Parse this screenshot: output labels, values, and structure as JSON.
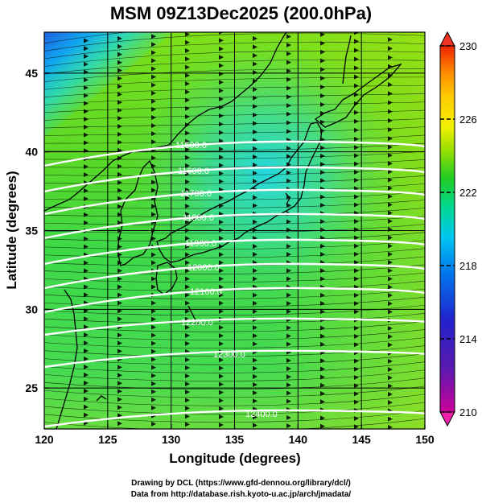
{
  "title": "MSM 09Z13Dec2025 (200.0hPa)",
  "axes": {
    "xlabel": "Longitude (degrees)",
    "ylabel": "Latitude  (degrees)",
    "xticks": [
      "120",
      "125",
      "130",
      "135",
      "140",
      "145",
      "150"
    ],
    "yticks": [
      "25",
      "30",
      "35",
      "40",
      "45"
    ],
    "xlim": [
      120,
      150
    ],
    "ylim": [
      22.4,
      47.6
    ]
  },
  "colorbar": {
    "ticks": [
      "210",
      "214",
      "218",
      "222",
      "226",
      "230"
    ],
    "range": [
      210,
      230
    ],
    "colors": [
      "#cc0099",
      "#2222cc",
      "#00a0ff",
      "#00d890",
      "#22cc22",
      "#9ee000",
      "#f2f000",
      "#ff9900",
      "#ee2200"
    ]
  },
  "contours": {
    "labels": [
      "11500.0",
      "11600.0",
      "11700.0",
      "11800.0",
      "11900.0",
      "12000.0",
      "12100.0",
      "12200.0",
      "12300.0",
      "12400.0"
    ]
  },
  "credits": {
    "line1": "Drawing by DCL (https://www.gfd-dennou.org/library/dcl/)",
    "line2": "Data from http://database.rish.kyoto-u.ac.jp/arch/jmadata/"
  }
}
